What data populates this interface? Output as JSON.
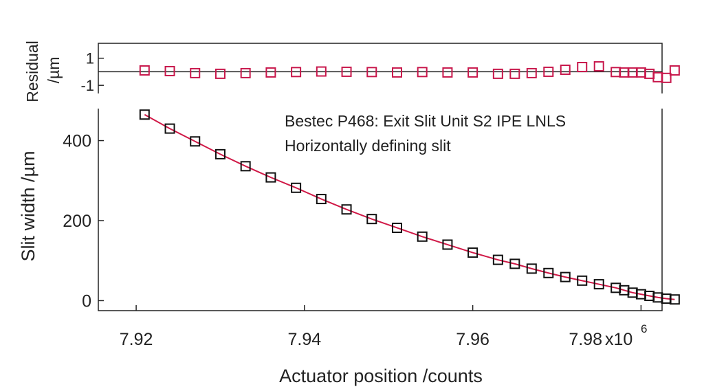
{
  "chart_data": [
    {
      "type": "scatter",
      "panel": "residual",
      "ylabel_line1": "Residual",
      "ylabel_line2": "/µm",
      "ylim": [
        -1.6,
        2.1
      ],
      "xlim": [
        7.9155,
        7.9825
      ],
      "yticks": [
        {
          "value": 1,
          "label": "1"
        },
        {
          "value": -1,
          "label": "-1"
        }
      ],
      "zero_line": true,
      "marker_color": "#c8174b",
      "line_color": "#222222",
      "x": [
        7.921,
        7.924,
        7.927,
        7.93,
        7.933,
        7.936,
        7.939,
        7.942,
        7.945,
        7.948,
        7.951,
        7.954,
        7.957,
        7.96,
        7.963,
        7.965,
        7.967,
        7.969,
        7.971,
        7.973,
        7.975,
        7.977,
        7.978,
        7.979,
        7.98,
        7.981,
        7.982,
        7.983,
        7.984
      ],
      "y": [
        0.1,
        0.05,
        -0.1,
        -0.15,
        -0.1,
        -0.05,
        -0.02,
        0.02,
        0.0,
        -0.02,
        -0.05,
        -0.02,
        -0.05,
        -0.05,
        -0.15,
        -0.15,
        -0.1,
        0.0,
        0.15,
        0.35,
        0.4,
        -0.02,
        -0.05,
        -0.05,
        -0.05,
        -0.15,
        -0.4,
        -0.45,
        0.1
      ]
    },
    {
      "type": "scatter",
      "panel": "main",
      "ylabel": "Slit width /µm",
      "xlabel": "Actuator position /counts",
      "x_exponent_label": "x10",
      "x_exponent_power": "6",
      "annotation_line1": "Bestec P468: Exit Slit Unit S2 IPE LNLS",
      "annotation_line2": "Horizontally defining slit",
      "ylim": [
        -25,
        480
      ],
      "xlim": [
        7.9155,
        7.9825
      ],
      "yticks": [
        {
          "value": 0,
          "label": "0"
        },
        {
          "value": 200,
          "label": "200"
        },
        {
          "value": 400,
          "label": "400"
        }
      ],
      "xticks": [
        {
          "value": 7.92,
          "label": "7.92"
        },
        {
          "value": 7.94,
          "label": "7.94"
        },
        {
          "value": 7.96,
          "label": "7.96"
        },
        {
          "value": 7.98,
          "label": "7.98"
        }
      ],
      "marker_color": "#111111",
      "fit_color": "#d01846",
      "x": [
        7.921,
        7.924,
        7.927,
        7.93,
        7.933,
        7.936,
        7.939,
        7.942,
        7.945,
        7.948,
        7.951,
        7.954,
        7.957,
        7.96,
        7.963,
        7.965,
        7.967,
        7.969,
        7.971,
        7.973,
        7.975,
        7.977,
        7.978,
        7.979,
        7.98,
        7.981,
        7.982,
        7.983,
        7.984
      ],
      "y": [
        465,
        430,
        398,
        366,
        336,
        308,
        282,
        254,
        228,
        204,
        182,
        160,
        140,
        120,
        102,
        92,
        80,
        69,
        59,
        50,
        41,
        32,
        26,
        20,
        16,
        12,
        8,
        5,
        3
      ]
    }
  ]
}
